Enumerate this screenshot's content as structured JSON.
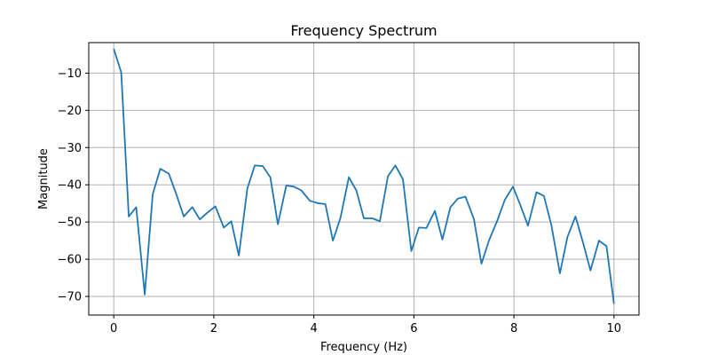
{
  "chart_data": {
    "type": "line",
    "title": "Frequency Spectrum",
    "xlabel": "Frequency (Hz)",
    "ylabel": "Magnitude",
    "xlim": [
      -0.5,
      10.5
    ],
    "ylim": [
      -75,
      -1.8
    ],
    "grid": true,
    "x_ticks": [
      0,
      2,
      4,
      6,
      8,
      10
    ],
    "x_tick_labels": [
      "0",
      "2",
      "4",
      "6",
      "8",
      "10"
    ],
    "y_ticks": [
      -70,
      -60,
      -50,
      -40,
      -30,
      -20,
      -10
    ],
    "y_tick_labels": [
      "−70",
      "−60",
      "−50",
      "−40",
      "−30",
      "−20",
      "−10"
    ],
    "line_color": "#1f77b4",
    "series": [
      {
        "x": [
          0.0,
          0.15,
          0.3,
          0.45,
          0.62,
          0.78,
          0.93,
          1.1,
          1.25,
          1.4,
          1.57,
          1.72,
          1.87,
          2.03,
          2.2,
          2.35,
          2.5,
          2.67,
          2.82,
          2.98,
          3.13,
          3.28,
          3.45,
          3.6,
          3.75,
          3.92,
          4.07,
          4.23,
          4.38,
          4.53,
          4.7,
          4.85,
          5.0,
          5.17,
          5.32,
          5.48,
          5.63,
          5.78,
          5.95,
          6.1,
          6.25,
          6.42,
          6.57,
          6.73,
          6.88,
          7.03,
          7.2,
          7.35,
          7.5,
          7.67,
          7.82,
          7.98,
          8.13,
          8.28,
          8.45,
          8.6,
          8.75,
          8.92,
          9.07,
          9.23,
          9.38,
          9.53,
          9.7,
          9.85,
          10.0
        ],
        "y": [
          -3.5,
          -9.8,
          -48.5,
          -46.0,
          -69.5,
          -42.5,
          -35.7,
          -37.0,
          -42.5,
          -48.5,
          -46.0,
          -49.3,
          -47.5,
          -45.8,
          -51.5,
          -49.8,
          -59.0,
          -41.0,
          -34.8,
          -35.0,
          -38.0,
          -50.6,
          -40.2,
          -40.5,
          -41.5,
          -44.3,
          -44.9,
          -45.2,
          -55.0,
          -49.0,
          -38.0,
          -41.5,
          -49.0,
          -49.0,
          -49.8,
          -37.7,
          -34.8,
          -38.5,
          -57.8,
          -51.5,
          -51.6,
          -47.0,
          -54.7,
          -46.0,
          -43.7,
          -43.2,
          -49.2,
          -61.2,
          -55.0,
          -49.5,
          -44.0,
          -40.5,
          -45.5,
          -51.0,
          -42.0,
          -43.0,
          -51.0,
          -63.8,
          -54.0,
          -48.5,
          -55.5,
          -63.0,
          -55.0,
          -56.5,
          -72.0
        ]
      }
    ]
  }
}
